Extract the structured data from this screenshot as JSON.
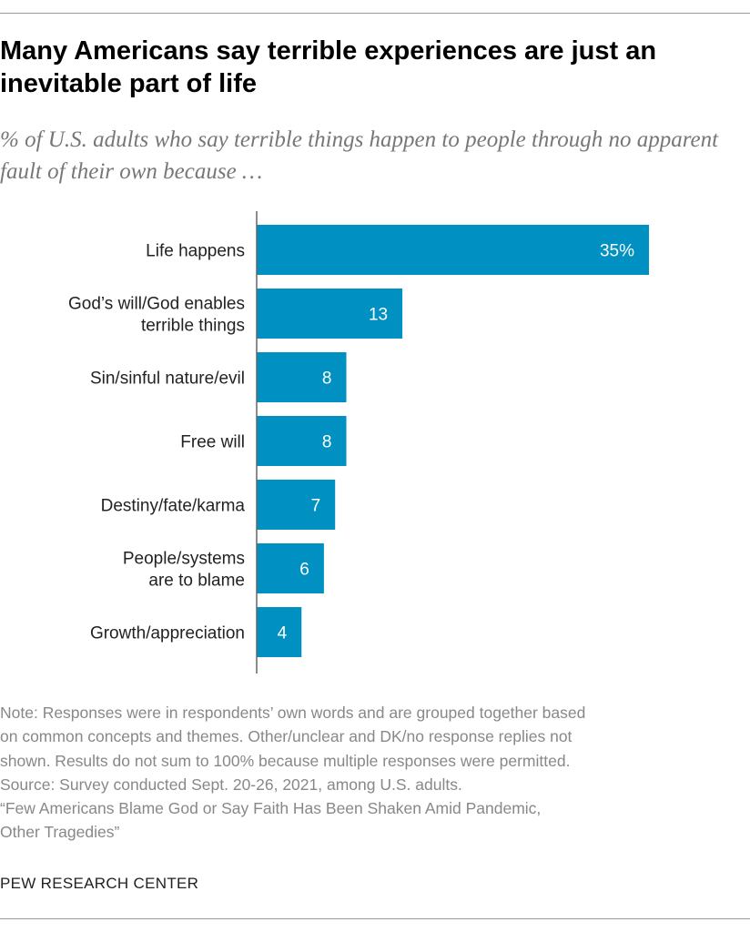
{
  "title": "Many Americans say terrible experiences are just an inevitable part of life",
  "subtitle": "% of U.S. adults who say terrible things happen to people through no apparent fault of their own because …",
  "chart_data": {
    "type": "bar",
    "orientation": "horizontal",
    "categories": [
      [
        "Life happens"
      ],
      [
        "God’s will/God enables",
        "terrible things"
      ],
      [
        "Sin/sinful nature/evil"
      ],
      [
        "Free will"
      ],
      [
        "Destiny/fate/karma"
      ],
      [
        "People/systems",
        "are to blame"
      ],
      [
        "Growth/appreciation"
      ]
    ],
    "values": [
      35,
      13,
      8,
      8,
      7,
      6,
      4
    ],
    "data_labels": [
      "35%",
      "13",
      "8",
      "8",
      "7",
      "6",
      "4"
    ],
    "xlim": [
      0,
      35
    ],
    "grid": false,
    "bar_color": "#0091c2"
  },
  "notes": [
    "Note: Responses were in respondents’ own words and are grouped together based",
    "on common concepts and themes. Other/unclear and DK/no response replies not",
    "shown. Results do not sum to 100% because multiple responses were permitted.",
    "Source: Survey conducted Sept. 20-26, 2021, among U.S. adults.",
    "“Few Americans Blame God or Say Faith Has Been Shaken Amid Pandemic,",
    "Other Tragedies”"
  ],
  "brand": "PEW RESEARCH CENTER"
}
